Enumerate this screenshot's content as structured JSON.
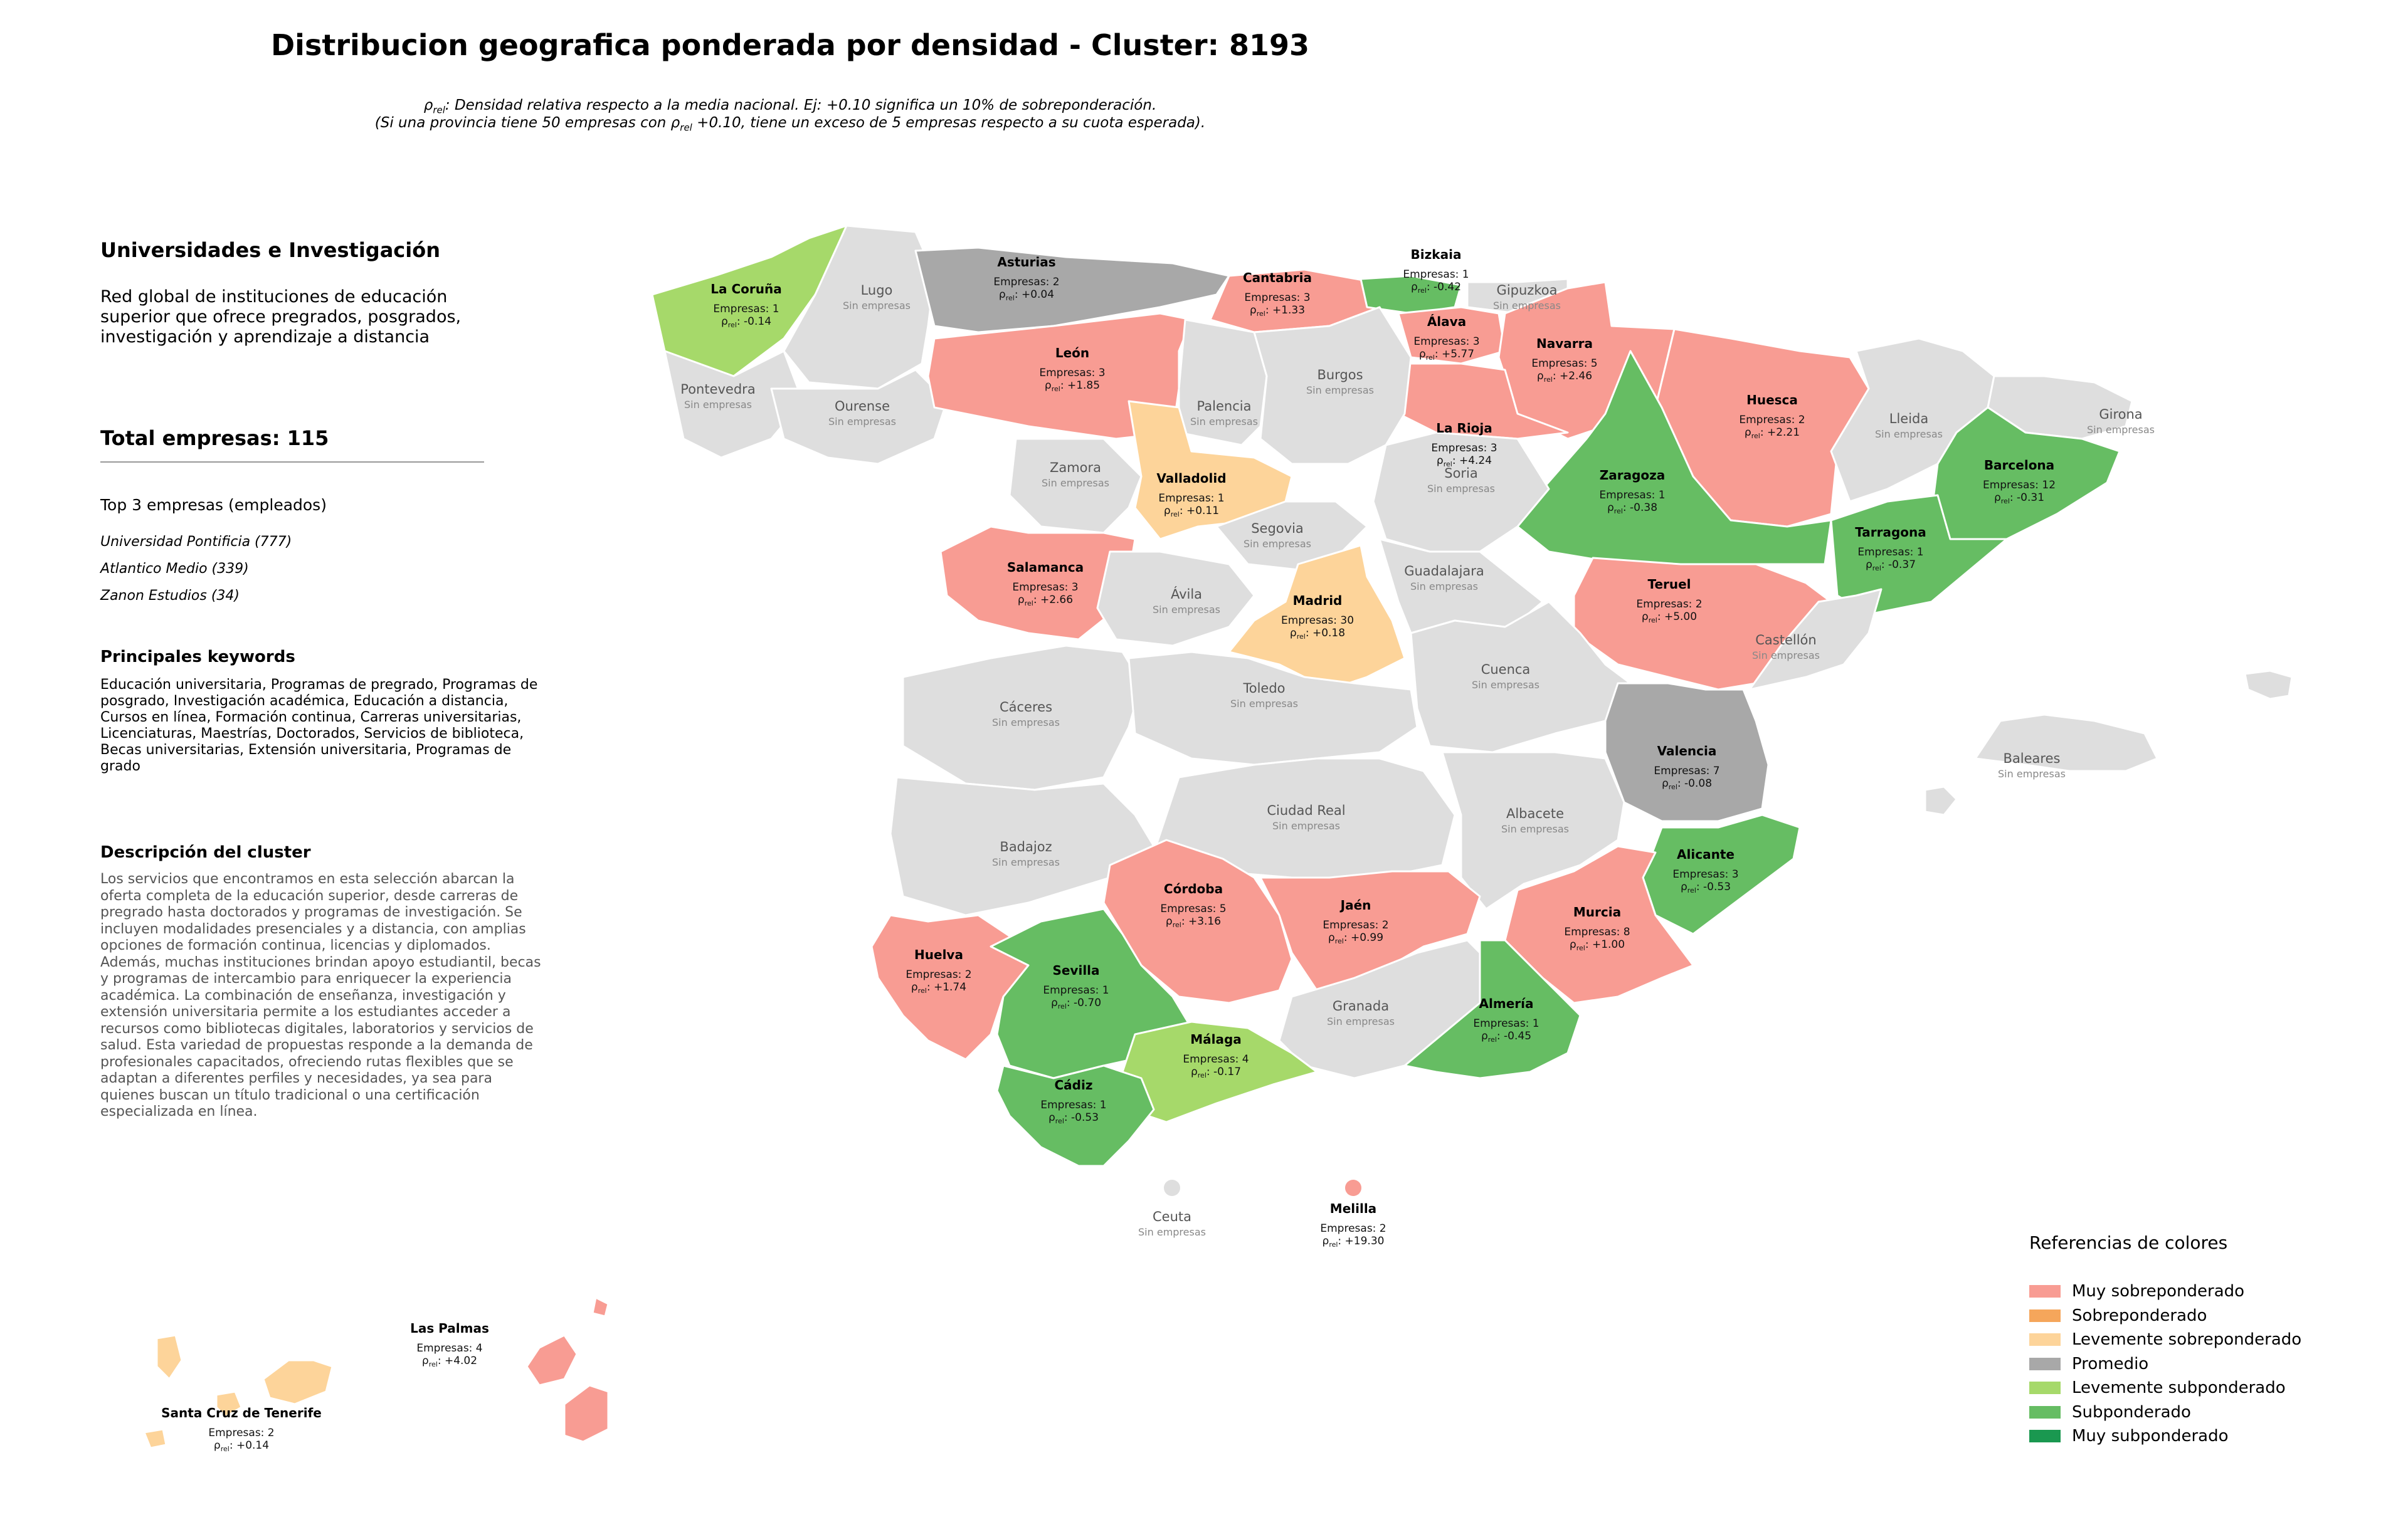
{
  "title": "Distribucion geografica ponderada por densidad - Cluster: 8193",
  "subtitle_line1": "ρrel: Densidad relativa respecto a la media nacional. Ej: +0.10 significa un 10% de sobreponderación.",
  "subtitle_line2": "(Si una provincia tiene 50 empresas con ρrel +0.10, tiene un exceso de 5 empresas respecto a su cuota esperada).",
  "sidebar": {
    "cluster_name": "Universidades e Investigación",
    "cluster_summary": "Red global de instituciones de educación superior que ofrece pregrados, posgrados, investigación y aprendizaje a distancia",
    "total": "Total empresas: 115",
    "top_header": "Top 3 empresas (empleados)",
    "top_companies": [
      "Universidad Pontificia (777)",
      "Atlantico Medio (339)",
      "Zanon Estudios (34)"
    ],
    "keywords_header": "Principales keywords",
    "keywords": "Educación universitaria, Programas de pregrado, Programas de posgrado, Investigación académica, Educación a distancia, Cursos en línea, Formación continua, Carreras universitarias, Licenciaturas, Maestrías, Doctorados, Servicios de biblioteca, Becas universitarias, Extensión universitaria, Programas de grado",
    "description_header": "Descripción del cluster",
    "description": "Los servicios que encontramos en esta selección abarcan la oferta completa de la educación superior, desde carreras de pregrado hasta doctorados y programas de investigación. Se incluyen modalidades presenciales y a distancia, con amplias opciones de formación continua, licencias y diplomados. Además, muchas instituciones brindan apoyo estudiantil, becas y programas de intercambio para enriquecer la experiencia académica. La combinación de enseñanza, investigación y extensión universitaria permite a los estudiantes acceder a recursos como bibliotecas digitales, laboratorios y servicios de salud. Esta variedad de propuestas responde a la demanda de profesionales capacitados, ofreciendo rutas flexibles que se adaptan a diferentes perfiles y necesidades, ya sea para quienes buscan un título tradicional o una certificación especializada en línea."
  },
  "colors": {
    "muy_sobre": "#f89c93",
    "sobre": "#f5a65b",
    "leve_sobre": "#fdd49a",
    "promedio": "#a8a8a8",
    "leve_sub": "#a6d96a",
    "sub": "#66bd63",
    "muy_sub": "#1a9850",
    "sin": "#dedede"
  },
  "provinces": [
    {
      "name": "La Coruña",
      "cat": "leve_sub",
      "count": "Empresas: 1",
      "rho": "-0.14"
    },
    {
      "name": "Lugo",
      "cat": "sin",
      "empty": "Sin empresas"
    },
    {
      "name": "Asturias",
      "cat": "promedio",
      "count": "Empresas: 2",
      "rho": "+0.04"
    },
    {
      "name": "Cantabria",
      "cat": "muy_sobre",
      "count": "Empresas: 3",
      "rho": "+1.33"
    },
    {
      "name": "Bizkaia",
      "cat": "sub",
      "count": "Empresas: 1",
      "rho": "-0.42"
    },
    {
      "name": "Gipuzkoa",
      "cat": "sin",
      "empty": "Sin empresas"
    },
    {
      "name": "Álava",
      "cat": "muy_sobre",
      "count": "Empresas: 3",
      "rho": "+5.77"
    },
    {
      "name": "Navarra",
      "cat": "muy_sobre",
      "count": "Empresas: 5",
      "rho": "+2.46"
    },
    {
      "name": "La Rioja",
      "cat": "muy_sobre",
      "count": "Empresas: 3",
      "rho": "+4.24"
    },
    {
      "name": "Huesca",
      "cat": "muy_sobre",
      "count": "Empresas: 2",
      "rho": "+2.21"
    },
    {
      "name": "Lleida",
      "cat": "sin",
      "empty": "Sin empresas"
    },
    {
      "name": "Girona",
      "cat": "sin",
      "empty": "Sin empresas"
    },
    {
      "name": "Barcelona",
      "cat": "sub",
      "count": "Empresas: 12",
      "rho": "-0.31"
    },
    {
      "name": "Tarragona",
      "cat": "sub",
      "count": "Empresas: 1",
      "rho": "-0.37"
    },
    {
      "name": "Zaragoza",
      "cat": "sub",
      "count": "Empresas: 1",
      "rho": "-0.38"
    },
    {
      "name": "Pontevedra",
      "cat": "sin",
      "empty": "Sin empresas"
    },
    {
      "name": "Ourense",
      "cat": "sin",
      "empty": "Sin empresas"
    },
    {
      "name": "León",
      "cat": "muy_sobre",
      "count": "Empresas: 3",
      "rho": "+1.85"
    },
    {
      "name": "Palencia",
      "cat": "sin",
      "empty": "Sin empresas"
    },
    {
      "name": "Burgos",
      "cat": "sin",
      "empty": "Sin empresas"
    },
    {
      "name": "Soria",
      "cat": "sin",
      "empty": "Sin empresas"
    },
    {
      "name": "Zamora",
      "cat": "sin",
      "empty": "Sin empresas"
    },
    {
      "name": "Valladolid",
      "cat": "leve_sobre",
      "count": "Empresas: 1",
      "rho": "+0.11"
    },
    {
      "name": "Segovia",
      "cat": "sin",
      "empty": "Sin empresas"
    },
    {
      "name": "Salamanca",
      "cat": "muy_sobre",
      "count": "Empresas: 3",
      "rho": "+2.66"
    },
    {
      "name": "Ávila",
      "cat": "sin",
      "empty": "Sin empresas"
    },
    {
      "name": "Madrid",
      "cat": "leve_sobre",
      "count": "Empresas: 30",
      "rho": "+0.18"
    },
    {
      "name": "Guadalajara",
      "cat": "sin",
      "empty": "Sin empresas"
    },
    {
      "name": "Teruel",
      "cat": "muy_sobre",
      "count": "Empresas: 2",
      "rho": "+5.00"
    },
    {
      "name": "Castellón",
      "cat": "sin",
      "empty": "Sin empresas"
    },
    {
      "name": "Cáceres",
      "cat": "sin",
      "empty": "Sin empresas"
    },
    {
      "name": "Toledo",
      "cat": "sin",
      "empty": "Sin empresas"
    },
    {
      "name": "Cuenca",
      "cat": "sin",
      "empty": "Sin empresas"
    },
    {
      "name": "Valencia",
      "cat": "promedio",
      "count": "Empresas: 7",
      "rho": "-0.08"
    },
    {
      "name": "Badajoz",
      "cat": "sin",
      "empty": "Sin empresas"
    },
    {
      "name": "Ciudad Real",
      "cat": "sin",
      "empty": "Sin empresas"
    },
    {
      "name": "Albacete",
      "cat": "sin",
      "empty": "Sin empresas"
    },
    {
      "name": "Alicante",
      "cat": "sub",
      "count": "Empresas: 3",
      "rho": "-0.53"
    },
    {
      "name": "Córdoba",
      "cat": "muy_sobre",
      "count": "Empresas: 5",
      "rho": "+3.16"
    },
    {
      "name": "Jaén",
      "cat": "muy_sobre",
      "count": "Empresas: 2",
      "rho": "+0.99"
    },
    {
      "name": "Murcia",
      "cat": "muy_sobre",
      "count": "Empresas: 8",
      "rho": "+1.00"
    },
    {
      "name": "Huelva",
      "cat": "muy_sobre",
      "count": "Empresas: 2",
      "rho": "+1.74"
    },
    {
      "name": "Sevilla",
      "cat": "sub",
      "count": "Empresas: 1",
      "rho": "-0.70"
    },
    {
      "name": "Granada",
      "cat": "sin",
      "empty": "Sin empresas"
    },
    {
      "name": "Almería",
      "cat": "sub",
      "count": "Empresas: 1",
      "rho": "-0.45"
    },
    {
      "name": "Málaga",
      "cat": "leve_sub",
      "count": "Empresas: 4",
      "rho": "-0.17"
    },
    {
      "name": "Cádiz",
      "cat": "sub",
      "count": "Empresas: 1",
      "rho": "-0.53"
    },
    {
      "name": "Baleares",
      "cat": "sin",
      "empty": "Sin empresas"
    },
    {
      "name": "Ceuta",
      "cat": "sin",
      "empty": "Sin empresas"
    },
    {
      "name": "Melilla",
      "cat": "muy_sobre",
      "count": "Empresas: 2",
      "rho": "+19.30"
    },
    {
      "name": "Las Palmas",
      "cat": "muy_sobre",
      "count": "Empresas: 4",
      "rho": "+4.02"
    },
    {
      "name": "Santa Cruz de Tenerife",
      "cat": "leve_sobre",
      "count": "Empresas: 2",
      "rho": "+0.14"
    }
  ],
  "legend": {
    "title": "Referencias de colores",
    "items": [
      {
        "label": "Muy sobreponderado",
        "cat": "muy_sobre"
      },
      {
        "label": "Sobreponderado",
        "cat": "sobre"
      },
      {
        "label": "Levemente sobreponderado",
        "cat": "leve_sobre"
      },
      {
        "label": "Promedio",
        "cat": "promedio"
      },
      {
        "label": "Levemente subponderado",
        "cat": "leve_sub"
      },
      {
        "label": "Subponderado",
        "cat": "sub"
      },
      {
        "label": "Muy subponderado",
        "cat": "muy_sub"
      }
    ]
  }
}
